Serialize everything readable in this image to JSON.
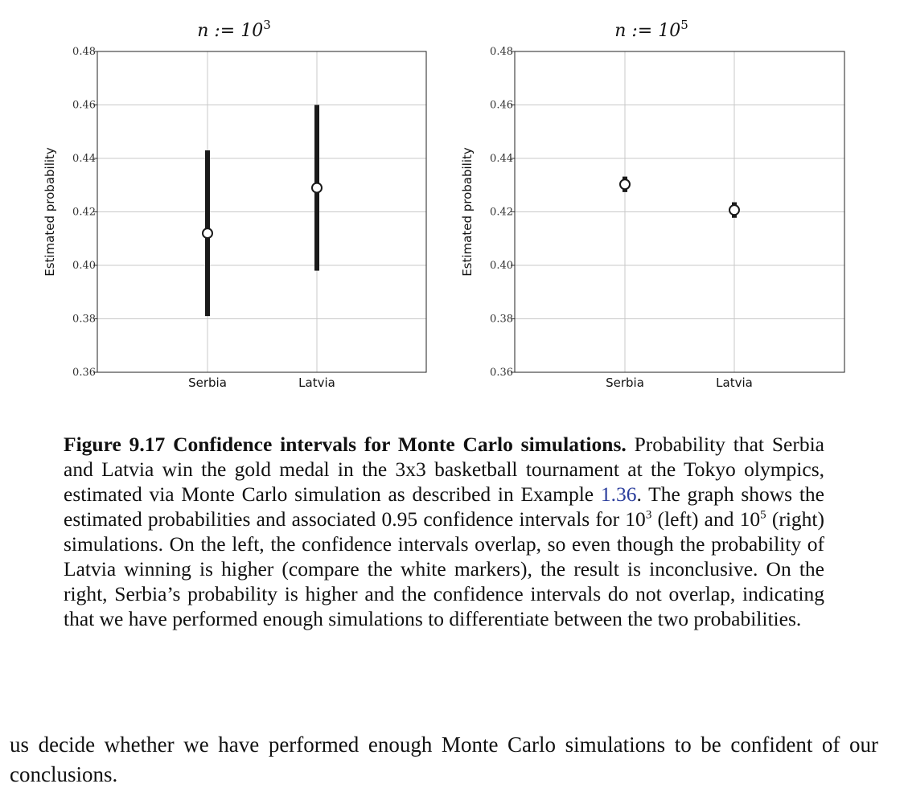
{
  "chart_data": [
    {
      "type": "errorbar",
      "title_prefix": "n := 10",
      "title_exponent": "3",
      "ylabel": "Estimated probability",
      "xlabel": "",
      "categories": [
        "Serbia",
        "Latvia"
      ],
      "values": [
        0.412,
        0.429
      ],
      "ci_lower": [
        0.381,
        0.398
      ],
      "ci_upper": [
        0.443,
        0.46
      ],
      "ylim": [
        0.36,
        0.48
      ],
      "yticks": [
        "0.36",
        "0.38",
        "0.40",
        "0.42",
        "0.44",
        "0.46",
        "0.48"
      ],
      "grid": true
    },
    {
      "type": "errorbar",
      "title_prefix": "n := 10",
      "title_exponent": "5",
      "ylabel": "Estimated probability",
      "xlabel": "",
      "categories": [
        "Serbia",
        "Latvia"
      ],
      "values": [
        0.4303,
        0.4207
      ],
      "ci_lower": [
        0.4274,
        0.4178
      ],
      "ci_upper": [
        0.4332,
        0.4236
      ],
      "ylim": [
        0.36,
        0.48
      ],
      "yticks": [
        "0.36",
        "0.38",
        "0.40",
        "0.42",
        "0.44",
        "0.46",
        "0.48"
      ],
      "grid": true
    }
  ],
  "caption": {
    "label": "Figure 9.17  Confidence intervals for Monte Carlo simulations.",
    "text_1": " Probability that Serbia and Latvia win the gold medal in the 3x3 basketball tournament at the Tokyo olympics, estimated via Monte Carlo simulation as described in Example ",
    "link": "1.36",
    "text_2": ". The graph shows the estimated probabilities and associated 0.95 confidence intervals for 10",
    "sup_1": "3",
    "text_3": " (left) and 10",
    "sup_2": "5",
    "text_4": " (right) simulations. On the left, the confidence intervals overlap, so even though the probability of Latvia winning is higher (compare the white markers), the result is inconclusive. On the right, Serbia’s probability is higher and the confidence intervals do not overlap, indicating that we have performed enough simulations to differentiate between the two probabilities."
  },
  "body_text": "us decide whether we have performed enough Monte Carlo simulations to be confident of our conclusions."
}
